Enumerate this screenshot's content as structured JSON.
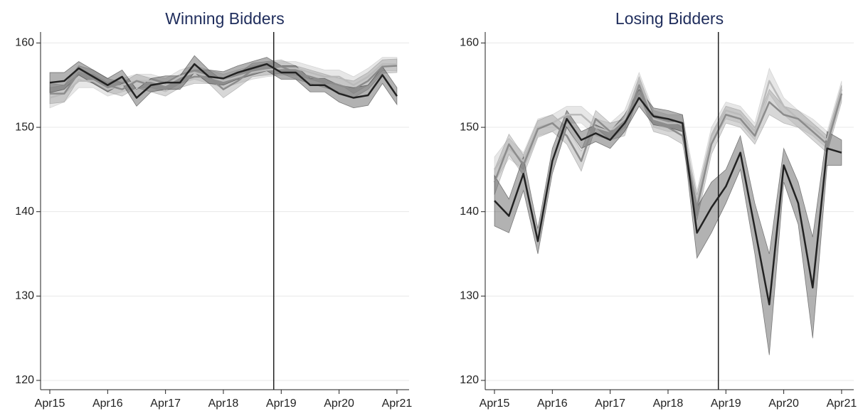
{
  "chart_data": [
    {
      "type": "line",
      "title": "Winning Bidders",
      "x": [
        2015.25,
        2015.5,
        2015.75,
        2016,
        2016.25,
        2016.5,
        2016.75,
        2017,
        2017.25,
        2017.5,
        2017.75,
        2018,
        2018.25,
        2018.5,
        2018.75,
        2019,
        2019.25,
        2019.5,
        2019.75,
        2020,
        2020.25,
        2020.5,
        2020.75,
        2021,
        2021.25
      ],
      "series": [
        {
          "color": "#bbbbbb",
          "values": [
            153.5,
            154,
            155.5,
            155.5,
            154.5,
            155,
            155.5,
            155.5,
            155,
            156,
            156.5,
            156,
            155.5,
            156,
            156.5,
            156.8,
            157,
            157,
            156.5,
            156,
            156,
            155,
            156,
            157.5,
            157.5
          ],
          "errors": [
            1.2,
            1,
            0.8,
            0.8,
            0.8,
            0.8,
            0.8,
            0.8,
            0.8,
            0.8,
            0.8,
            0.8,
            0.8,
            0.8,
            0.8,
            0.8,
            0.8,
            0.8,
            0.8,
            0.8,
            0.8,
            1,
            1,
            0.8,
            0.8
          ]
        },
        {
          "color": "#8c8c8c",
          "values": [
            154,
            154,
            156.5,
            156,
            155,
            154.5,
            155.5,
            155,
            154.5,
            155.5,
            156,
            156,
            154.5,
            155.5,
            156.8,
            157,
            157.2,
            156.5,
            156,
            155.5,
            155,
            154.5,
            155.5,
            157.2,
            157.3
          ],
          "errors": [
            1.2,
            1,
            0.8,
            0.8,
            0.8,
            0.8,
            0.8,
            0.8,
            0.8,
            0.8,
            0.8,
            0.8,
            1,
            0.8,
            0.8,
            0.8,
            0.8,
            0.8,
            0.8,
            0.8,
            0.8,
            1,
            1,
            0.8,
            0.8
          ]
        },
        {
          "color": "#222222",
          "values": [
            155.3,
            155.5,
            157,
            156,
            155,
            156,
            153.5,
            155,
            155.3,
            155.3,
            157.5,
            156,
            155.8,
            156.5,
            157,
            157.5,
            156.5,
            156.5,
            155,
            155,
            154,
            153.5,
            153.8,
            156.2,
            153.7
          ],
          "errors": [
            1.2,
            1,
            0.8,
            0.8,
            0.8,
            0.8,
            1,
            0.8,
            0.8,
            0.8,
            1,
            0.8,
            0.8,
            0.8,
            0.8,
            0.8,
            0.8,
            0.8,
            0.8,
            0.8,
            1,
            1.2,
            1.2,
            1,
            1
          ]
        }
      ],
      "vline": 2019.12,
      "xlim": [
        2015.09,
        2021.46
      ],
      "xticks": [
        {
          "value": 2015.25,
          "label": "Apr15"
        },
        {
          "value": 2016.25,
          "label": "Apr16"
        },
        {
          "value": 2017.25,
          "label": "Apr17"
        },
        {
          "value": 2018.25,
          "label": "Apr18"
        },
        {
          "value": 2019.25,
          "label": "Apr19"
        },
        {
          "value": 2020.25,
          "label": "Apr20"
        },
        {
          "value": 2021.25,
          "label": "Apr21"
        }
      ],
      "ylim": [
        118.9,
        161.3
      ],
      "yticks": [
        120,
        130,
        140,
        150,
        160
      ],
      "grid": true
    },
    {
      "type": "line",
      "title": "Losing Bidders",
      "x": [
        2015.25,
        2015.5,
        2015.75,
        2016,
        2016.25,
        2016.5,
        2016.75,
        2017,
        2017.25,
        2017.5,
        2017.75,
        2018,
        2018.25,
        2018.5,
        2018.75,
        2019,
        2019.25,
        2019.5,
        2019.75,
        2020,
        2020.25,
        2020.5,
        2020.75,
        2021,
        2021.25
      ],
      "series": [
        {
          "color": "#bbbbbb",
          "values": [
            145,
            147.5,
            146,
            150,
            150.5,
            151.5,
            151.5,
            150,
            149.5,
            151,
            155.5,
            151,
            150.5,
            150.5,
            141,
            149,
            152,
            151.5,
            149.5,
            155.5,
            152.5,
            151,
            150,
            148.5,
            154.5
          ],
          "errors": [
            1.5,
            1.2,
            1,
            1,
            1,
            1,
            1,
            1,
            1,
            1,
            1,
            1,
            1,
            1,
            1.5,
            1,
            1,
            1,
            1,
            1.5,
            1,
            1,
            1,
            1,
            1
          ]
        },
        {
          "color": "#8c8c8c",
          "values": [
            143.5,
            148,
            145.5,
            149.8,
            150.5,
            149,
            146,
            151,
            149.5,
            150,
            155,
            150.5,
            150,
            149,
            140.5,
            148,
            151.5,
            151,
            149,
            153,
            151.5,
            151,
            149.5,
            148,
            154
          ],
          "errors": [
            1.5,
            1.2,
            1.2,
            1,
            1,
            1,
            1.2,
            1,
            1,
            1,
            1,
            1,
            1,
            1,
            1.5,
            1.2,
            1,
            1,
            1,
            1.5,
            1,
            1,
            1,
            1,
            1
          ]
        },
        {
          "color": "#222222",
          "values": [
            141.3,
            139.5,
            144.5,
            136.5,
            146,
            151,
            148.5,
            149.3,
            148.5,
            150.5,
            153.5,
            151.3,
            151,
            150.5,
            137.5,
            140.5,
            143,
            147,
            138,
            129,
            145.5,
            141,
            131,
            147.5,
            147
          ],
          "errors": [
            3,
            2,
            2,
            1.5,
            1.5,
            1,
            1,
            1,
            1,
            1,
            1,
            1,
            1,
            1,
            3,
            3,
            2,
            2,
            3,
            6,
            2,
            2.5,
            6,
            2,
            1.5
          ]
        }
      ],
      "vline": 2019.12,
      "xlim": [
        2015.09,
        2021.46
      ],
      "xticks": [
        {
          "value": 2015.25,
          "label": "Apr15"
        },
        {
          "value": 2016.25,
          "label": "Apr16"
        },
        {
          "value": 2017.25,
          "label": "Apr17"
        },
        {
          "value": 2018.25,
          "label": "Apr18"
        },
        {
          "value": 2019.25,
          "label": "Apr19"
        },
        {
          "value": 2020.25,
          "label": "Apr20"
        },
        {
          "value": 2021.25,
          "label": "Apr21"
        }
      ],
      "ylim": [
        118.9,
        161.3
      ],
      "yticks": [
        120,
        130,
        140,
        150,
        160
      ],
      "grid": true
    }
  ]
}
